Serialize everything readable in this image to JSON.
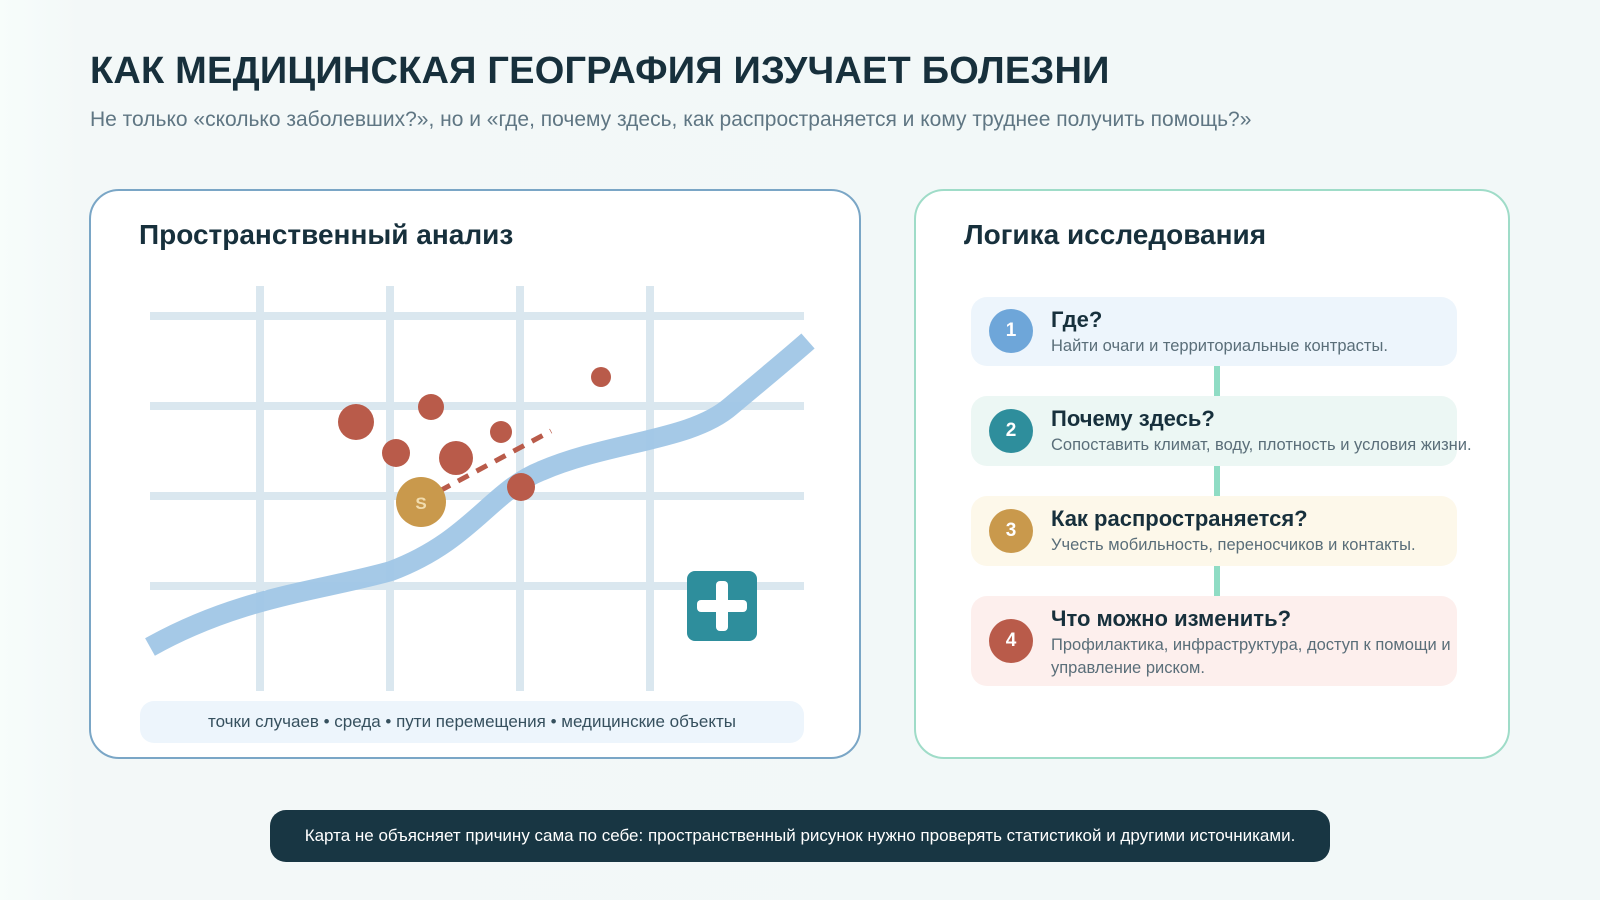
{
  "header": {
    "title": "КАК МЕДИЦИНСКАЯ ГЕОГРАФИЯ ИЗУЧАЕТ БОЛЕЗНИ",
    "subtitle": "Не только «сколько заболевших?», но и «где, почему здесь, как распространяется и кому труднее получить помощь?»"
  },
  "spatial": {
    "title": "Пространственный анализ",
    "source_label": "S",
    "legend": "точки случаев • среда • пути перемещения • медицинские объекты",
    "icons": [
      "grid-map",
      "case-points",
      "river",
      "source-point",
      "medical-facility-icon"
    ],
    "colors": {
      "grid": "#dae7ef",
      "cases": "#b95b4a",
      "river": "#a0c6e6",
      "source": "#c9994c",
      "facility": "#2e8e9c"
    }
  },
  "logic": {
    "title": "Логика исследования",
    "steps": [
      {
        "num": "1",
        "title": "Где?",
        "desc": "Найти очаги и территориальные контрасты.",
        "color": "#6ea6d9",
        "bg": "#edf5fc"
      },
      {
        "num": "2",
        "title": "Почему здесь?",
        "desc": "Сопоставить климат, воду, плотность и условия жизни.",
        "color": "#2e8e9c",
        "bg": "#ecf7f4"
      },
      {
        "num": "3",
        "title": "Как распространяется?",
        "desc": "Учесть мобильность, переносчиков и контакты.",
        "color": "#c9994c",
        "bg": "#fdf8ea"
      },
      {
        "num": "4",
        "title": "Что можно изменить?",
        "desc": "Профилактика, инфраструктура, доступ к помощи и управление риском.",
        "color": "#b95b4a",
        "bg": "#fdefed"
      }
    ],
    "connector_color": "#8fdcc4"
  },
  "footer": {
    "note": "Карта не объясняет причину сама по себе: пространственный рисунок нужно проверять статистикой и другими источниками."
  }
}
